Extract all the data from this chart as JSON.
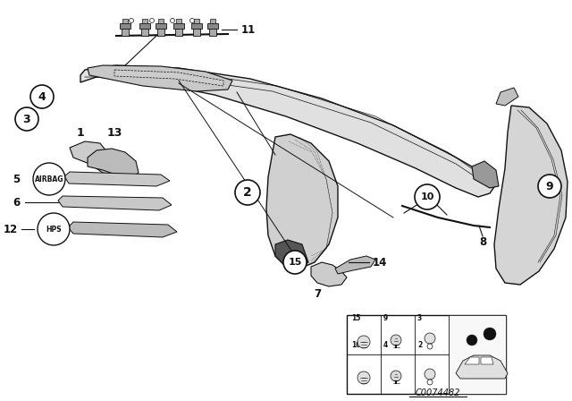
{
  "bg_color": "#ffffff",
  "footer_code": "C0074482",
  "line_color": "#111111",
  "text_color": "#111111",
  "gray_fill": "#d8d8d8",
  "light_gray": "#eeeeee"
}
